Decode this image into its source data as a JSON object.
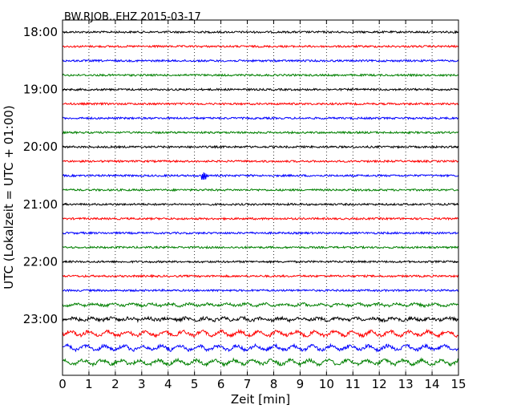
{
  "chart_data": {
    "type": "line",
    "title": "BW.RJOB..EHZ 2015-03-17",
    "xlabel": "Zeit  [min]",
    "ylabel": "UTC (Lokalzeit = UTC + 01:00)",
    "xlim": [
      0,
      15
    ],
    "x_ticks": [
      "0",
      "1",
      "2",
      "3",
      "4",
      "5",
      "6",
      "7",
      "8",
      "9",
      "10",
      "11",
      "12",
      "13",
      "14",
      "15"
    ],
    "y_tick_labels": [
      "18:00",
      "19:00",
      "20:00",
      "21:00",
      "22:00",
      "23:00"
    ],
    "grid": "vertical dotted",
    "trace_interval_minutes": 15,
    "trace_colors": [
      "#000000",
      "#ff0000",
      "#0000ff",
      "#008000"
    ],
    "traces": [
      {
        "start": "18:00",
        "color": "#000000"
      },
      {
        "start": "18:15",
        "color": "#ff0000"
      },
      {
        "start": "18:30",
        "color": "#0000ff"
      },
      {
        "start": "18:45",
        "color": "#008000"
      },
      {
        "start": "19:00",
        "color": "#000000"
      },
      {
        "start": "19:15",
        "color": "#ff0000"
      },
      {
        "start": "19:30",
        "color": "#0000ff"
      },
      {
        "start": "19:45",
        "color": "#008000"
      },
      {
        "start": "20:00",
        "color": "#000000"
      },
      {
        "start": "20:15",
        "color": "#ff0000"
      },
      {
        "start": "20:30",
        "color": "#0000ff"
      },
      {
        "start": "20:45",
        "color": "#008000"
      },
      {
        "start": "21:00",
        "color": "#000000"
      },
      {
        "start": "21:15",
        "color": "#ff0000"
      },
      {
        "start": "21:30",
        "color": "#0000ff"
      },
      {
        "start": "21:45",
        "color": "#008000"
      },
      {
        "start": "22:00",
        "color": "#000000"
      },
      {
        "start": "22:15",
        "color": "#ff0000"
      },
      {
        "start": "22:30",
        "color": "#0000ff"
      },
      {
        "start": "22:45",
        "color": "#008000"
      },
      {
        "start": "23:00",
        "color": "#000000"
      },
      {
        "start": "23:15",
        "color": "#ff0000"
      },
      {
        "start": "23:30",
        "color": "#0000ff"
      },
      {
        "start": "23:45",
        "color": "#008000"
      }
    ]
  }
}
